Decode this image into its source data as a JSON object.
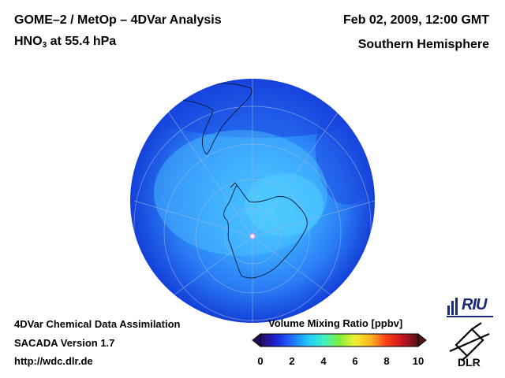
{
  "header": {
    "title_line1": "GOME–2 / MetOp – 4DVar Analysis",
    "species": "HNO",
    "species_sub": "3",
    "level": " at 55.4 hPa",
    "datetime": "Feb 02, 2009, 12:00 GMT",
    "hemisphere": "Southern Hemisphere"
  },
  "footer": {
    "line1": "4DVar Chemical Data Assimilation",
    "line2": "SACADA Version 1.7",
    "line3": "http://wdc.dlr.de"
  },
  "colorbar": {
    "title": "Volume Mixing Ratio [ppbv]",
    "ticks": [
      "0",
      "2",
      "4",
      "6",
      "8",
      "10"
    ],
    "colors": [
      "#2a0a5e",
      "#1b22d8",
      "#1e70ff",
      "#22c8ff",
      "#3cf0c8",
      "#7ef03c",
      "#f0f032",
      "#ffb41e",
      "#ff3c14",
      "#c8141e",
      "#501414"
    ]
  },
  "logos": {
    "riu": "RIU",
    "dlr": "DLR"
  },
  "colors": {
    "ocean_outer": "#1746e6",
    "ocean_inner": "#3aa6ff",
    "polar_core": "#48c8ff"
  }
}
